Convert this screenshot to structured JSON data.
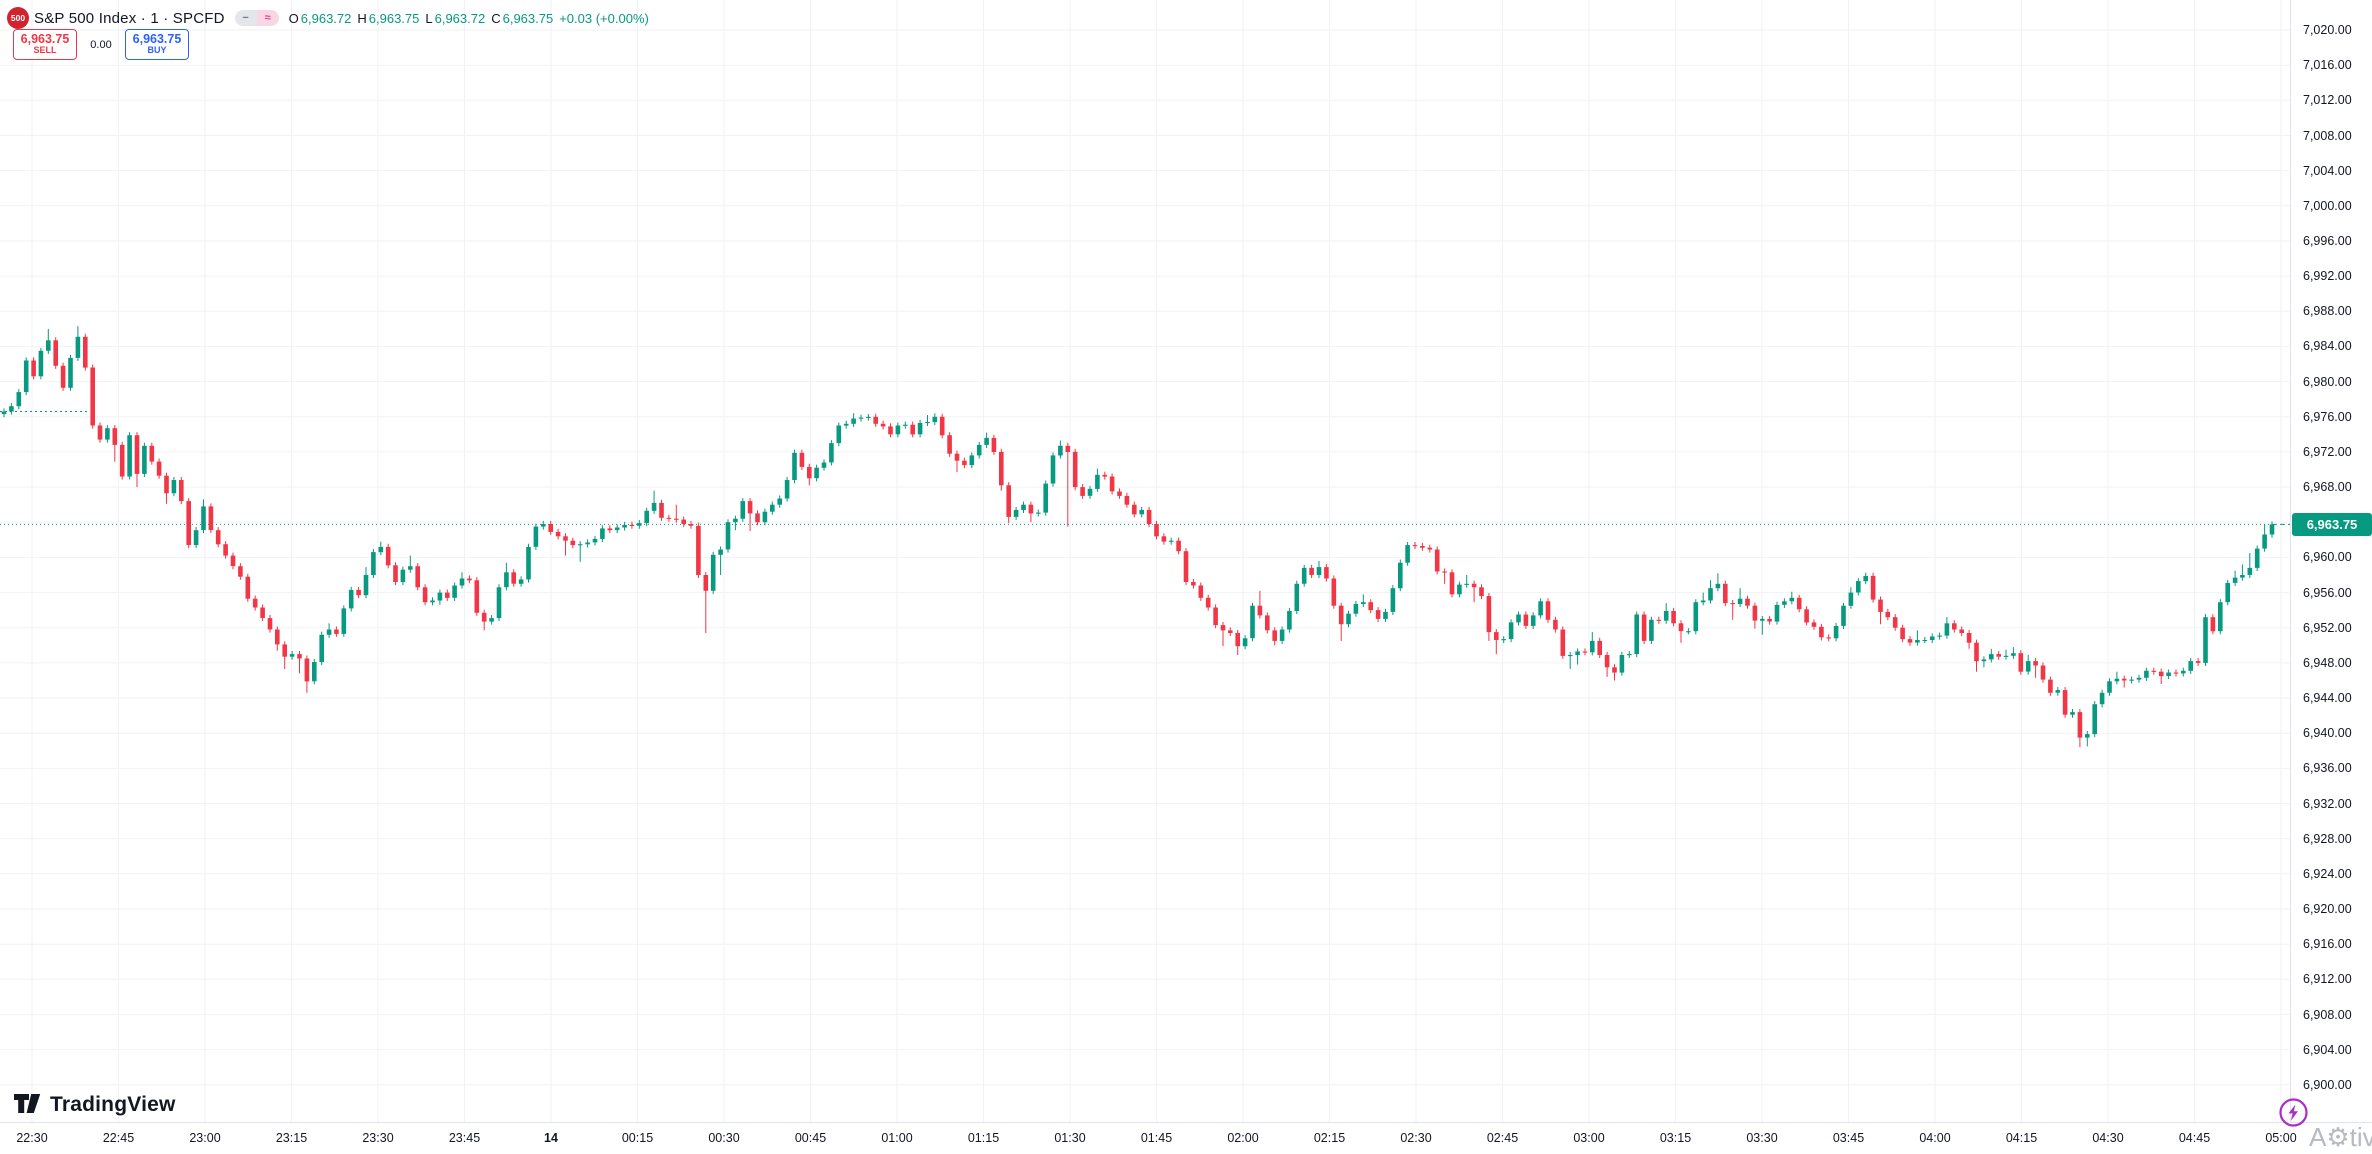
{
  "header": {
    "badge": "500",
    "symbol_title": "S&P 500 Index · 1 · SPCFD",
    "ohlc": {
      "o_label": "O",
      "o": "6,963.72",
      "h_label": "H",
      "h": "6,963.75",
      "l_label": "L",
      "l": "6,963.72",
      "c_label": "C",
      "c": "6,963.75",
      "change": "+0.03 (+0.00%)"
    }
  },
  "trade_panel": {
    "sell_price": "6,963.75",
    "sell_label": "SELL",
    "spread": "0.00",
    "buy_price": "6,963.75",
    "buy_label": "BUY"
  },
  "logo_text": "TradingView",
  "watermark_text": "A⚙tiv",
  "price_label": "6,963.75",
  "colors": {
    "up": "#089981",
    "down": "#f23645",
    "buy_accent": "#2962ff",
    "sell_accent": "#f23645",
    "grid": "#f0f2f5",
    "axis_text": "#131722",
    "price_label_bg": "#089981",
    "lightning": "#ab2ec4",
    "watermark": "#b7bac1",
    "badge_bg": "#d2232f"
  },
  "chart_data": {
    "type": "candlestick",
    "symbol": "S&P 500 Index (SPCFD)",
    "interval": "1",
    "current_price": 6963.75,
    "open_ref_price": 6976.6,
    "first_open": 6976.3,
    "last_close": 6963.75,
    "session_low": 6938.4,
    "session_high": 6986.3,
    "y_axis": {
      "min": 6900,
      "max": 7020,
      "step": 4,
      "ticks": [
        7020,
        7016,
        7012,
        7008,
        7004,
        7000,
        6996,
        6992,
        6988,
        6984,
        6980,
        6976,
        6972,
        6968,
        6964,
        6960,
        6956,
        6952,
        6948,
        6944,
        6940,
        6936,
        6932,
        6928,
        6924,
        6920,
        6916,
        6912,
        6908,
        6904,
        6900
      ]
    },
    "x_ticks": [
      "22:30",
      "22:45",
      "23:00",
      "23:15",
      "23:30",
      "23:45",
      "14",
      "00:15",
      "00:30",
      "00:45",
      "01:00",
      "01:15",
      "01:30",
      "01:45",
      "02:00",
      "02:15",
      "02:30",
      "02:45",
      "03:00",
      "03:15",
      "03:30",
      "03:45",
      "04:00",
      "04:15",
      "04:30",
      "04:45",
      "05:00"
    ],
    "x_tick_bold": "14",
    "candles": [
      6976.6,
      6977.2,
      6978.8,
      6982.4,
      6980.6,
      6983.5,
      [
        6984.7,
        6986.0,
        null
      ],
      6981.8,
      6979.3,
      6982.7,
      [
        6985.1,
        6986.3,
        null
      ],
      6981.6,
      6975.0,
      6973.4,
      6974.7,
      [
        6972.8,
        null,
        6970.9
      ],
      6969.2,
      6973.9,
      [
        6969.5,
        null,
        6968.0
      ],
      6972.7,
      6970.9,
      6969.3,
      [
        6967.3,
        null,
        6966.1
      ],
      6968.8,
      6966.4,
      6961.4,
      6963.1,
      [
        6965.8,
        6966.6,
        null
      ],
      6963.1,
      6961.5,
      6960.2,
      6959.0,
      6957.8,
      6955.3,
      6954.3,
      6953.1,
      6951.8,
      [
        6950.1,
        null,
        6949.4
      ],
      [
        6948.7,
        null,
        6947.3
      ],
      6949.0,
      [
        6948.5,
        null,
        6946.8
      ],
      [
        6945.9,
        null,
        6944.6
      ],
      6948.1,
      6951.2,
      [
        6951.8,
        6952.5,
        null
      ],
      6951.3,
      6954.2,
      6956.3,
      6955.7,
      [
        6958.0,
        6958.9,
        null
      ],
      6960.6,
      [
        6961.2,
        6961.8,
        null
      ],
      6959.1,
      6957.2,
      6958.6,
      [
        6959.0,
        6960.2,
        null
      ],
      6956.6,
      6954.9,
      6955.1,
      [
        6956.0,
        null,
        6954.6
      ],
      6955.4,
      6956.8,
      [
        6957.6,
        6958.3,
        null
      ],
      6957.4,
      6953.7,
      [
        6952.7,
        null,
        6951.7
      ],
      6953.1,
      6956.6,
      [
        6958.3,
        6959.4,
        null
      ],
      6957.0,
      6957.5,
      6961.2,
      6963.5,
      6963.8,
      6962.9,
      6962.4,
      [
        6961.9,
        null,
        6960.2
      ],
      6961.4,
      [
        6961.5,
        null,
        6959.5
      ],
      6961.7,
      6962.1,
      6963.3,
      6963.1,
      6963.4,
      6963.7,
      6963.6,
      6963.9,
      6965.3,
      [
        6966.2,
        6967.6,
        null
      ],
      6964.5,
      6964.4,
      [
        6964.3,
        6966.0,
        null
      ],
      6963.8,
      6963.6,
      6958.0,
      [
        6956.2,
        null,
        6951.4
      ],
      6960.3,
      [
        6960.9,
        null,
        6958.0
      ],
      6964.0,
      [
        6964.4,
        null,
        6963.1
      ],
      6966.4,
      [
        6965.0,
        null,
        6963.0
      ],
      6964.0,
      6965.2,
      6966.0,
      6966.7,
      6968.8,
      6971.9,
      6970.3,
      [
        6969.0,
        null,
        6968.2
      ],
      6970.2,
      6970.8,
      6973.0,
      6975.0,
      6975.2,
      [
        6975.8,
        6976.4,
        null
      ],
      6975.9,
      [
        6976.0,
        6976.3,
        null
      ],
      6975.2,
      6974.9,
      6974.0,
      6975.0,
      6975.1,
      6974.0,
      6975.3,
      [
        6975.4,
        6976.2,
        null
      ],
      [
        6976.0,
        6976.4,
        null
      ],
      6973.9,
      6971.8,
      [
        6971.0,
        null,
        6969.7
      ],
      6970.5,
      6971.6,
      6972.8,
      [
        6973.6,
        6974.2,
        null
      ],
      6972.0,
      [
        6968.2,
        null,
        6967.6
      ],
      [
        6964.6,
        null,
        6963.9
      ],
      6965.4,
      6966.0,
      [
        6965.0,
        null,
        6964.0
      ],
      6965.1,
      6968.4,
      6971.6,
      [
        6972.7,
        6973.3,
        null
      ],
      [
        6972.0,
        null,
        6963.5
      ],
      6968.0,
      6967.0,
      6967.8,
      [
        6969.4,
        6970.1,
        null
      ],
      6969.2,
      6967.5,
      6967.0,
      6966.0,
      6964.9,
      6965.4,
      6963.8,
      6962.4,
      6961.8,
      6961.9,
      6960.7,
      6957.2,
      6956.8,
      6955.4,
      6954.3,
      6952.3,
      [
        6951.7,
        null,
        6949.9
      ],
      6951.4,
      [
        6949.9,
        null,
        6948.9
      ],
      6950.8,
      6954.5,
      [
        6953.4,
        6956.2,
        null
      ],
      6951.7,
      [
        6950.5,
        null,
        6950.0
      ],
      6951.8,
      6953.9,
      6957.0,
      6958.8,
      6958.0,
      [
        6958.9,
        6959.6,
        null
      ],
      6957.6,
      6954.5,
      [
        6952.4,
        null,
        6950.5
      ],
      6953.6,
      6954.7,
      [
        6954.9,
        6955.8,
        null
      ],
      6954.0,
      6953.0,
      6953.8,
      6956.5,
      6959.4,
      6961.4,
      6961.3,
      6961.1,
      6960.9,
      6958.4,
      [
        6958.3,
        null,
        6957.0
      ],
      6955.8,
      6956.9,
      [
        6957.0,
        6958.0,
        null
      ],
      [
        6956.6,
        null,
        6954.9
      ],
      6955.6,
      [
        6951.5,
        null,
        6950.5
      ],
      [
        6950.6,
        null,
        6949.0
      ],
      6950.7,
      6952.6,
      6953.5,
      6952.2,
      6953.4,
      6955.0,
      6952.9,
      6951.8,
      6948.8,
      [
        6948.9,
        null,
        6947.3
      ],
      [
        6949.3,
        null,
        6947.8
      ],
      6949.2,
      [
        6950.5,
        6951.5,
        null
      ],
      6948.9,
      [
        6947.5,
        null,
        6946.4
      ],
      [
        6946.9,
        null,
        6946.0
      ],
      6948.9,
      6949.0,
      6953.5,
      6950.5,
      6952.9,
      6952.8,
      [
        6953.9,
        6954.8,
        null
      ],
      6952.5,
      [
        6951.6,
        null,
        6950.3
      ],
      6951.6,
      6954.9,
      [
        6955.1,
        6956.0,
        null
      ],
      [
        6956.5,
        6957.4,
        null
      ],
      [
        6957.0,
        6958.2,
        null
      ],
      6954.8,
      [
        6954.7,
        null,
        6952.9
      ],
      [
        6955.3,
        6956.5,
        null
      ],
      6954.5,
      [
        6952.8,
        null,
        6951.9
      ],
      [
        6953.0,
        null,
        6951.2
      ],
      6952.7,
      6954.6,
      6955.0,
      [
        6955.4,
        6956.1,
        null
      ],
      6954.1,
      6952.6,
      6952.1,
      6950.9,
      6950.8,
      6952.2,
      6954.5,
      [
        6956.0,
        6956.6,
        null
      ],
      6957.3,
      6957.9,
      6955.2,
      [
        6953.8,
        null,
        6952.4
      ],
      6953.2,
      6952.0,
      6950.7,
      6950.3,
      [
        6950.6,
        6951.7,
        null
      ],
      6950.6,
      6951.0,
      6951.1,
      [
        6952.5,
        6953.2,
        null
      ],
      6951.8,
      6951.4,
      [
        6950.3,
        null,
        6949.6
      ],
      [
        6948.2,
        null,
        6947.0
      ],
      [
        6948.4,
        null,
        6947.5
      ],
      [
        6949.0,
        6949.6,
        null
      ],
      6948.7,
      [
        6948.8,
        6949.5,
        null
      ],
      [
        6949.1,
        6949.8,
        null
      ],
      6947.0,
      [
        6948.2,
        6948.9,
        null
      ],
      [
        6947.7,
        null,
        6946.3
      ],
      6946.1,
      6944.6,
      6944.9,
      6942.1,
      6942.4,
      [
        6939.5,
        null,
        6938.4
      ],
      [
        6939.9,
        null,
        6938.5
      ],
      6943.3,
      6944.6,
      6945.9,
      [
        6946.2,
        6947.0,
        null
      ],
      [
        6946.0,
        null,
        6945.2
      ],
      6946.1,
      6946.3,
      6947.1,
      6947.0,
      [
        6946.5,
        null,
        6945.6
      ],
      6946.9,
      6946.8,
      6947.1,
      6948.2,
      6948.0,
      6953.2,
      6951.6,
      6954.9,
      6957.1,
      [
        6957.7,
        6958.5,
        null
      ],
      [
        6958.0,
        6959.2,
        null
      ],
      [
        6958.8,
        6960.5,
        null
      ],
      6961.0,
      [
        6962.6,
        6963.8,
        null
      ],
      6963.75
    ]
  }
}
